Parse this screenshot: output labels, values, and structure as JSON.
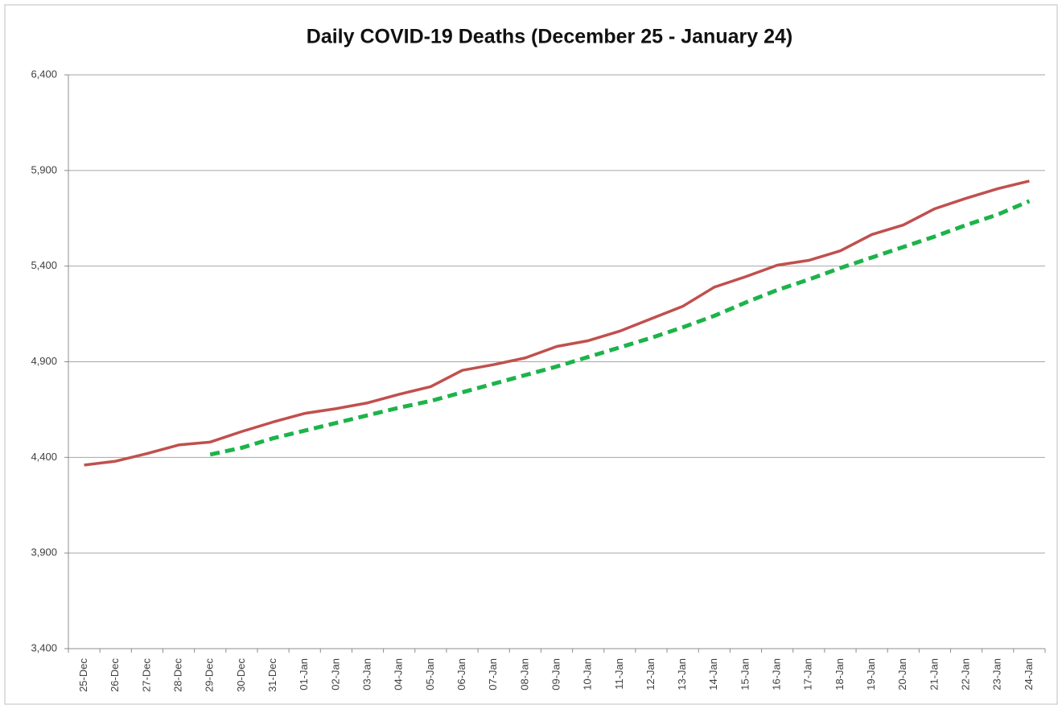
{
  "chart_data": {
    "type": "line",
    "title": "Daily COVID-19 Deaths (December 25 - January 24)",
    "categories": [
      "25-Dec",
      "26-Dec",
      "27-Dec",
      "28-Dec",
      "29-Dec",
      "30-Dec",
      "31-Dec",
      "01-Jan",
      "02-Jan",
      "03-Jan",
      "04-Jan",
      "05-Jan",
      "06-Jan",
      "07-Jan",
      "08-Jan",
      "09-Jan",
      "10-Jan",
      "11-Jan",
      "12-Jan",
      "13-Jan",
      "14-Jan",
      "15-Jan",
      "16-Jan",
      "17-Jan",
      "18-Jan",
      "19-Jan",
      "20-Jan",
      "21-Jan",
      "22-Jan",
      "23-Jan",
      "24-Jan"
    ],
    "series": [
      {
        "color": "#c0504d",
        "dashed": false,
        "values": [
          4360,
          4380,
          4420,
          4465,
          4480,
          4535,
          4585,
          4630,
          4655,
          4685,
          4730,
          4770,
          4855,
          4885,
          4920,
          4980,
          5010,
          5060,
          5125,
          5190,
          5290,
          5345,
          5405,
          5430,
          5480,
          5565,
          5615,
          5700,
          5755,
          5805,
          5845
        ]
      },
      {
        "color": "#1db34a",
        "dashed": true,
        "values": [
          null,
          null,
          null,
          null,
          4415,
          4450,
          4500,
          4540,
          4580,
          4620,
          4660,
          4695,
          4740,
          4785,
          4830,
          4875,
          4925,
          4975,
          5025,
          5080,
          5140,
          5210,
          5275,
          5330,
          5390,
          5445,
          5500,
          5555,
          5615,
          5670,
          5740
        ]
      }
    ],
    "ylim": [
      3400,
      6400
    ],
    "yticks": [
      {
        "value": 3400,
        "label": "3,400"
      },
      {
        "value": 3900,
        "label": "3,900"
      },
      {
        "value": 4400,
        "label": "4,400"
      },
      {
        "value": 4900,
        "label": "4,900"
      },
      {
        "value": 5400,
        "label": "5,400"
      },
      {
        "value": 5900,
        "label": "5,900"
      },
      {
        "value": 6400,
        "label": "6,400"
      }
    ],
    "grid": true
  }
}
